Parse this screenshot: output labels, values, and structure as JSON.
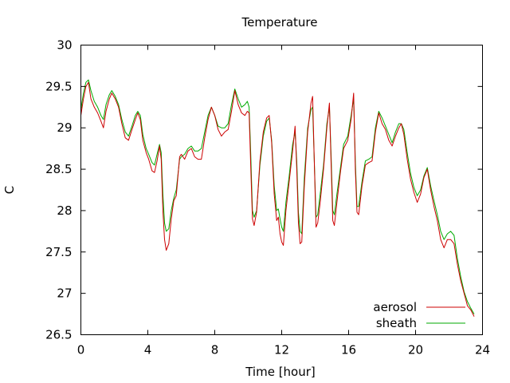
{
  "chart_data": {
    "type": "line",
    "title": "Temperature",
    "xlabel": "Time [hour]",
    "ylabel": "C",
    "xlim": [
      0,
      24
    ],
    "ylim": [
      26.5,
      30
    ],
    "xticks": [
      0,
      4,
      8,
      12,
      16,
      20,
      24
    ],
    "yticks": [
      26.5,
      27,
      27.5,
      28,
      28.5,
      29,
      29.5,
      30
    ],
    "xtick_labels": [
      "0",
      "4",
      "8",
      "12",
      "16",
      "20",
      "24"
    ],
    "ytick_labels": [
      "26.5",
      "27",
      "27.5",
      "28",
      "28.5",
      "29",
      "29.5",
      "30"
    ],
    "grid": false,
    "legend_position": "bottom-right",
    "series": [
      {
        "name": "aerosol",
        "color": "#cc0000",
        "points": [
          [
            0.0,
            29.15
          ],
          [
            0.15,
            29.35
          ],
          [
            0.3,
            29.5
          ],
          [
            0.45,
            29.55
          ],
          [
            0.6,
            29.35
          ],
          [
            0.8,
            29.25
          ],
          [
            1.0,
            29.18
          ],
          [
            1.2,
            29.08
          ],
          [
            1.35,
            29.0
          ],
          [
            1.5,
            29.2
          ],
          [
            1.7,
            29.35
          ],
          [
            1.85,
            29.42
          ],
          [
            2.05,
            29.35
          ],
          [
            2.25,
            29.25
          ],
          [
            2.45,
            29.05
          ],
          [
            2.65,
            28.88
          ],
          [
            2.85,
            28.85
          ],
          [
            3.05,
            28.98
          ],
          [
            3.25,
            29.1
          ],
          [
            3.4,
            29.18
          ],
          [
            3.55,
            29.1
          ],
          [
            3.7,
            28.85
          ],
          [
            3.9,
            28.7
          ],
          [
            4.05,
            28.62
          ],
          [
            4.25,
            28.48
          ],
          [
            4.4,
            28.46
          ],
          [
            4.55,
            28.6
          ],
          [
            4.7,
            28.78
          ],
          [
            4.8,
            28.62
          ],
          [
            4.9,
            28.0
          ],
          [
            5.0,
            27.65
          ],
          [
            5.1,
            27.52
          ],
          [
            5.25,
            27.6
          ],
          [
            5.4,
            27.9
          ],
          [
            5.55,
            28.12
          ],
          [
            5.7,
            28.18
          ],
          [
            5.9,
            28.65
          ],
          [
            6.0,
            28.68
          ],
          [
            6.2,
            28.62
          ],
          [
            6.4,
            28.72
          ],
          [
            6.6,
            28.75
          ],
          [
            6.8,
            28.65
          ],
          [
            7.0,
            28.62
          ],
          [
            7.2,
            28.62
          ],
          [
            7.4,
            28.88
          ],
          [
            7.6,
            29.1
          ],
          [
            7.8,
            29.25
          ],
          [
            8.0,
            29.15
          ],
          [
            8.2,
            28.98
          ],
          [
            8.4,
            28.9
          ],
          [
            8.6,
            28.95
          ],
          [
            8.8,
            28.98
          ],
          [
            9.0,
            29.2
          ],
          [
            9.2,
            29.45
          ],
          [
            9.4,
            29.28
          ],
          [
            9.6,
            29.18
          ],
          [
            9.8,
            29.15
          ],
          [
            9.95,
            29.2
          ],
          [
            10.05,
            29.18
          ],
          [
            10.15,
            28.55
          ],
          [
            10.25,
            27.9
          ],
          [
            10.35,
            27.82
          ],
          [
            10.5,
            27.98
          ],
          [
            10.7,
            28.6
          ],
          [
            10.9,
            28.95
          ],
          [
            11.1,
            29.12
          ],
          [
            11.25,
            29.15
          ],
          [
            11.4,
            28.82
          ],
          [
            11.55,
            28.2
          ],
          [
            11.7,
            27.88
          ],
          [
            11.8,
            27.92
          ],
          [
            11.9,
            27.72
          ],
          [
            12.0,
            27.62
          ],
          [
            12.1,
            27.58
          ],
          [
            12.25,
            28.0
          ],
          [
            12.45,
            28.35
          ],
          [
            12.65,
            28.72
          ],
          [
            12.8,
            29.02
          ],
          [
            12.9,
            28.5
          ],
          [
            13.0,
            27.85
          ],
          [
            13.1,
            27.6
          ],
          [
            13.2,
            27.62
          ],
          [
            13.35,
            28.3
          ],
          [
            13.55,
            28.95
          ],
          [
            13.75,
            29.3
          ],
          [
            13.85,
            29.38
          ],
          [
            13.95,
            28.6
          ],
          [
            14.05,
            27.8
          ],
          [
            14.15,
            27.85
          ],
          [
            14.3,
            28.1
          ],
          [
            14.5,
            28.5
          ],
          [
            14.7,
            29.0
          ],
          [
            14.85,
            29.3
          ],
          [
            14.95,
            28.6
          ],
          [
            15.05,
            27.88
          ],
          [
            15.15,
            27.82
          ],
          [
            15.3,
            28.1
          ],
          [
            15.5,
            28.45
          ],
          [
            15.7,
            28.75
          ],
          [
            15.95,
            28.85
          ],
          [
            16.15,
            29.1
          ],
          [
            16.3,
            29.42
          ],
          [
            16.4,
            28.5
          ],
          [
            16.5,
            27.98
          ],
          [
            16.6,
            27.95
          ],
          [
            16.8,
            28.3
          ],
          [
            17.0,
            28.55
          ],
          [
            17.2,
            28.58
          ],
          [
            17.4,
            28.6
          ],
          [
            17.6,
            28.95
          ],
          [
            17.8,
            29.18
          ],
          [
            18.0,
            29.05
          ],
          [
            18.2,
            28.98
          ],
          [
            18.4,
            28.85
          ],
          [
            18.6,
            28.78
          ],
          [
            18.8,
            28.9
          ],
          [
            19.0,
            29.0
          ],
          [
            19.15,
            29.05
          ],
          [
            19.3,
            28.92
          ],
          [
            19.5,
            28.62
          ],
          [
            19.7,
            28.38
          ],
          [
            19.9,
            28.22
          ],
          [
            20.1,
            28.1
          ],
          [
            20.3,
            28.2
          ],
          [
            20.5,
            28.4
          ],
          [
            20.7,
            28.5
          ],
          [
            20.9,
            28.25
          ],
          [
            21.1,
            28.05
          ],
          [
            21.3,
            27.88
          ],
          [
            21.5,
            27.65
          ],
          [
            21.7,
            27.55
          ],
          [
            21.9,
            27.65
          ],
          [
            22.1,
            27.65
          ],
          [
            22.3,
            27.6
          ],
          [
            22.5,
            27.35
          ],
          [
            22.7,
            27.15
          ],
          [
            22.9,
            27.0
          ],
          [
            23.1,
            26.85
          ],
          [
            23.3,
            26.8
          ],
          [
            23.5,
            26.72
          ]
        ]
      },
      {
        "name": "sheath",
        "color": "#00aa00",
        "points": [
          [
            0.0,
            29.22
          ],
          [
            0.15,
            29.42
          ],
          [
            0.3,
            29.55
          ],
          [
            0.45,
            29.58
          ],
          [
            0.6,
            29.45
          ],
          [
            0.8,
            29.32
          ],
          [
            1.0,
            29.25
          ],
          [
            1.2,
            29.15
          ],
          [
            1.35,
            29.1
          ],
          [
            1.5,
            29.28
          ],
          [
            1.7,
            29.4
          ],
          [
            1.85,
            29.45
          ],
          [
            2.05,
            29.38
          ],
          [
            2.25,
            29.28
          ],
          [
            2.45,
            29.1
          ],
          [
            2.65,
            28.95
          ],
          [
            2.85,
            28.9
          ],
          [
            3.05,
            29.02
          ],
          [
            3.25,
            29.15
          ],
          [
            3.4,
            29.2
          ],
          [
            3.55,
            29.15
          ],
          [
            3.7,
            28.92
          ],
          [
            3.9,
            28.75
          ],
          [
            4.05,
            28.68
          ],
          [
            4.25,
            28.58
          ],
          [
            4.4,
            28.55
          ],
          [
            4.55,
            28.68
          ],
          [
            4.7,
            28.8
          ],
          [
            4.8,
            28.7
          ],
          [
            4.9,
            28.2
          ],
          [
            5.0,
            27.85
          ],
          [
            5.1,
            27.75
          ],
          [
            5.25,
            27.78
          ],
          [
            5.4,
            28.0
          ],
          [
            5.55,
            28.15
          ],
          [
            5.7,
            28.25
          ],
          [
            5.9,
            28.62
          ],
          [
            6.0,
            28.65
          ],
          [
            6.2,
            28.68
          ],
          [
            6.4,
            28.75
          ],
          [
            6.6,
            28.78
          ],
          [
            6.8,
            28.72
          ],
          [
            7.0,
            28.72
          ],
          [
            7.2,
            28.75
          ],
          [
            7.4,
            28.95
          ],
          [
            7.6,
            29.15
          ],
          [
            7.8,
            29.25
          ],
          [
            8.0,
            29.15
          ],
          [
            8.2,
            29.02
          ],
          [
            8.4,
            29.0
          ],
          [
            8.6,
            29.0
          ],
          [
            8.8,
            29.05
          ],
          [
            9.0,
            29.28
          ],
          [
            9.2,
            29.47
          ],
          [
            9.4,
            29.35
          ],
          [
            9.6,
            29.25
          ],
          [
            9.8,
            29.28
          ],
          [
            9.95,
            29.32
          ],
          [
            10.05,
            29.25
          ],
          [
            10.15,
            28.7
          ],
          [
            10.25,
            28.0
          ],
          [
            10.35,
            27.92
          ],
          [
            10.5,
            28.0
          ],
          [
            10.7,
            28.55
          ],
          [
            10.9,
            28.9
          ],
          [
            11.1,
            29.08
          ],
          [
            11.25,
            29.12
          ],
          [
            11.4,
            28.85
          ],
          [
            11.55,
            28.3
          ],
          [
            11.7,
            28.0
          ],
          [
            11.8,
            28.02
          ],
          [
            11.9,
            27.9
          ],
          [
            12.0,
            27.8
          ],
          [
            12.1,
            27.75
          ],
          [
            12.25,
            28.1
          ],
          [
            12.45,
            28.42
          ],
          [
            12.65,
            28.8
          ],
          [
            12.8,
            28.95
          ],
          [
            12.9,
            28.6
          ],
          [
            13.0,
            27.98
          ],
          [
            13.1,
            27.75
          ],
          [
            13.2,
            27.72
          ],
          [
            13.35,
            28.4
          ],
          [
            13.55,
            29.0
          ],
          [
            13.75,
            29.22
          ],
          [
            13.85,
            29.25
          ],
          [
            13.95,
            28.6
          ],
          [
            14.05,
            27.92
          ],
          [
            14.15,
            27.95
          ],
          [
            14.3,
            28.2
          ],
          [
            14.5,
            28.55
          ],
          [
            14.7,
            29.05
          ],
          [
            14.85,
            29.25
          ],
          [
            14.95,
            28.7
          ],
          [
            15.05,
            28.0
          ],
          [
            15.15,
            27.95
          ],
          [
            15.3,
            28.2
          ],
          [
            15.5,
            28.5
          ],
          [
            15.7,
            28.8
          ],
          [
            15.95,
            28.9
          ],
          [
            16.15,
            29.15
          ],
          [
            16.3,
            29.35
          ],
          [
            16.4,
            28.6
          ],
          [
            16.5,
            28.05
          ],
          [
            16.6,
            28.05
          ],
          [
            16.8,
            28.35
          ],
          [
            17.0,
            28.6
          ],
          [
            17.2,
            28.62
          ],
          [
            17.4,
            28.65
          ],
          [
            17.6,
            29.0
          ],
          [
            17.8,
            29.2
          ],
          [
            18.0,
            29.12
          ],
          [
            18.2,
            29.02
          ],
          [
            18.4,
            28.92
          ],
          [
            18.6,
            28.82
          ],
          [
            18.8,
            28.95
          ],
          [
            19.0,
            29.05
          ],
          [
            19.15,
            29.05
          ],
          [
            19.3,
            28.98
          ],
          [
            19.5,
            28.7
          ],
          [
            19.7,
            28.45
          ],
          [
            19.9,
            28.28
          ],
          [
            20.1,
            28.18
          ],
          [
            20.3,
            28.25
          ],
          [
            20.5,
            28.42
          ],
          [
            20.7,
            28.52
          ],
          [
            20.9,
            28.3
          ],
          [
            21.1,
            28.12
          ],
          [
            21.3,
            27.95
          ],
          [
            21.5,
            27.75
          ],
          [
            21.7,
            27.65
          ],
          [
            21.9,
            27.72
          ],
          [
            22.1,
            27.75
          ],
          [
            22.3,
            27.7
          ],
          [
            22.5,
            27.42
          ],
          [
            22.7,
            27.2
          ],
          [
            22.9,
            27.02
          ],
          [
            23.1,
            26.9
          ],
          [
            23.3,
            26.82
          ],
          [
            23.5,
            26.75
          ]
        ]
      }
    ]
  }
}
